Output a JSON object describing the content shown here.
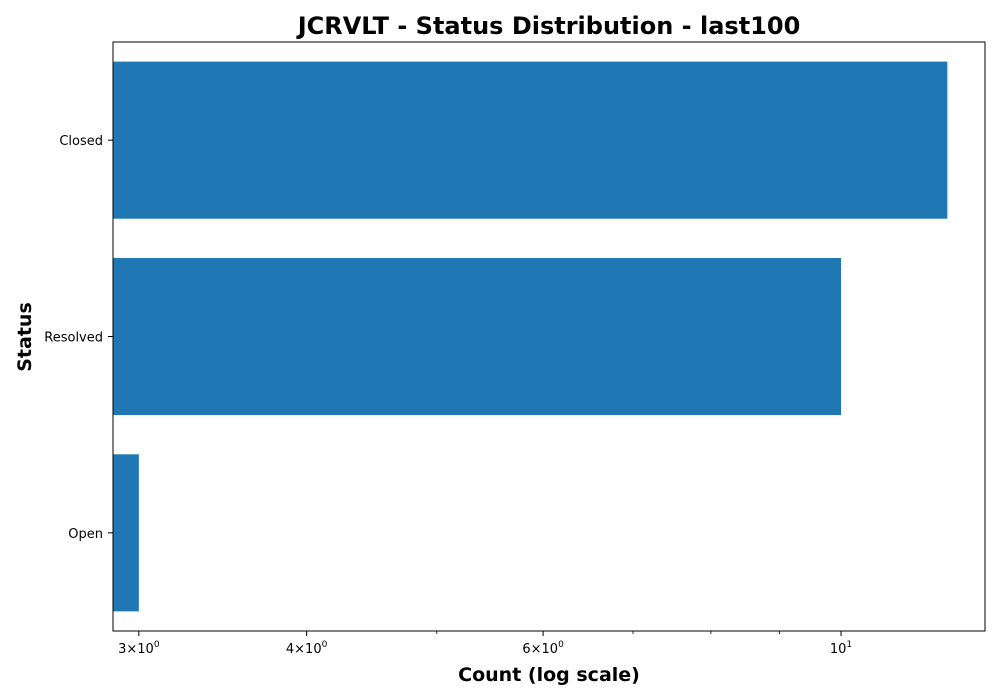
{
  "chart_data": {
    "type": "bar",
    "orientation": "horizontal",
    "title": "JCRVLT - Status Distribution - last100",
    "xlabel": "Count (log scale)",
    "ylabel": "Status",
    "x_scale": "log",
    "xlim": [
      2.87,
      12.8
    ],
    "categories": [
      "Closed",
      "Resolved",
      "Open"
    ],
    "values": [
      12,
      10,
      3
    ],
    "bar_color": "#1f77b4",
    "x_ticks": [
      {
        "value": 3,
        "base": "3×10",
        "exp": "0"
      },
      {
        "value": 4,
        "base": "4×10",
        "exp": "0"
      },
      {
        "value": 6,
        "base": "6×10",
        "exp": "0"
      },
      {
        "value": 10,
        "base": "10",
        "exp": "1"
      }
    ],
    "x_minor_ticks": [
      5,
      7,
      8,
      9
    ],
    "grid": false,
    "legend": "none"
  }
}
